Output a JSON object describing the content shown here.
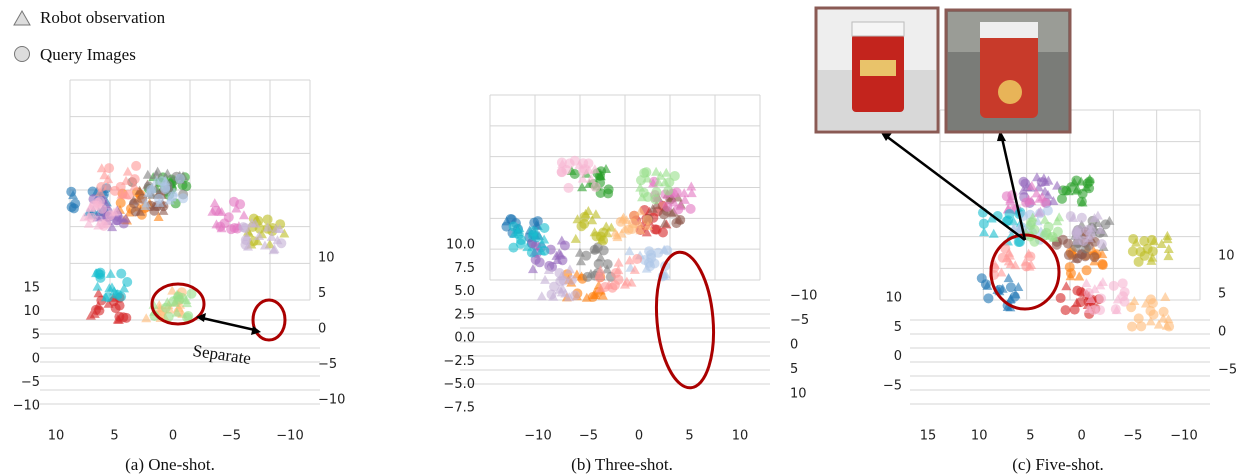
{
  "legend": [
    {
      "label": "Robot observation"
    },
    {
      "label": "Query Images"
    }
  ],
  "panels": [
    {
      "caption": "(a) One-shot.",
      "annotation": "Separate",
      "left_ticks": [
        "15",
        "10",
        "5",
        "0",
        "−5",
        "−10"
      ],
      "bottom_ticks": [
        "10",
        "5",
        "0",
        "−5",
        "−10"
      ],
      "right_ticks": [
        "10",
        "5",
        "0",
        "−5",
        "−10"
      ]
    },
    {
      "caption": "(b) Three-shot.",
      "left_ticks": [
        "10.0",
        "7.5",
        "5.0",
        "2.5",
        "0.0",
        "−2.5",
        "−5.0",
        "−7.5"
      ],
      "bottom_ticks": [
        "−10",
        "−5",
        "0",
        "5",
        "10"
      ],
      "right_ticks": [
        "−10",
        "−5",
        "0",
        "5",
        "10"
      ]
    },
    {
      "caption": "(c) Five-shot.",
      "left_ticks": [
        "10",
        "5",
        "0",
        "−5"
      ],
      "bottom_ticks": [
        "15",
        "10",
        "5",
        "0",
        "−5",
        "−10"
      ],
      "right_ticks": [
        "10",
        "5",
        "0",
        "−5"
      ]
    }
  ]
}
